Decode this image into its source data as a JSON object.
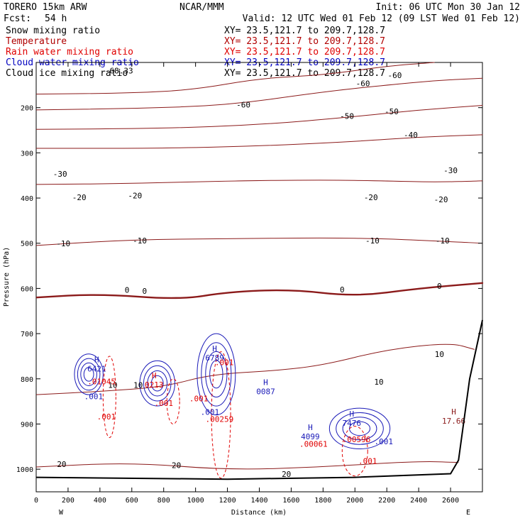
{
  "header": {
    "model": "TORERO  15km ARW",
    "center": "NCAR/MMM",
    "init": "Init: 06 UTC Mon 30 Jan 12",
    "fcst_label": "Fcst:",
    "fcst_value": "54 h",
    "valid": "Valid: 12 UTC Wed 01 Feb 12 (09 LST Wed 01 Feb 12)"
  },
  "fields": [
    {
      "name": "Snow mixing ratio",
      "xy": "XY=  23.5,121.7 to 209.7,128.7",
      "color": "#000000"
    },
    {
      "name": "Temperature",
      "xy": "XY=  23.5,121.7 to 209.7,128.7",
      "color": "#b00000"
    },
    {
      "name": "Rain water mixing ratio",
      "xy": "XY=  23.5,121.7 to 209.7,128.7",
      "color": "#e00000"
    },
    {
      "name": "Cloud water mixing ratio",
      "xy": "XY=  23.5,121.7 to 209.7,128.7",
      "color": "#0000c0"
    },
    {
      "name": "Cloud ice mixing ratio",
      "xy": "XY=  23.5,121.7 to 209.7,128.7",
      "color": "#000000"
    }
  ],
  "colors": {
    "temperature": "#8b1a1a",
    "rain": "#e00000",
    "cloud_water": "#1a1ab8",
    "frame": "#000000"
  },
  "chart_data": {
    "type": "cross-section",
    "xlabel": "Distance (km)",
    "ylabel": "Pressure (hPa)",
    "xlim": [
      0,
      2800
    ],
    "ylim": [
      1050,
      100
    ],
    "x_ticks": [
      0,
      200,
      400,
      600,
      800,
      1000,
      1200,
      1400,
      1600,
      1800,
      2000,
      2200,
      2400,
      2600
    ],
    "y_ticks": [
      200,
      300,
      400,
      500,
      600,
      700,
      800,
      900,
      1000
    ],
    "x_end_labels": {
      "left": "W",
      "right": "E"
    },
    "terrain": [
      [
        0,
        1018
      ],
      [
        1200,
        1022
      ],
      [
        2000,
        1018
      ],
      [
        2600,
        1010
      ],
      [
        2650,
        980
      ],
      [
        2720,
        800
      ],
      [
        2800,
        670
      ]
    ],
    "temperature_contours": [
      {
        "value": -60,
        "points": [
          [
            0,
            170
          ],
          [
            600,
            168
          ],
          [
            1000,
            160
          ],
          [
            1400,
            135
          ],
          [
            1800,
            128
          ],
          [
            2200,
            108
          ],
          [
            2500,
            100
          ]
        ]
      },
      {
        "value": -50,
        "points": [
          [
            0,
            205
          ],
          [
            600,
            202
          ],
          [
            1200,
            195
          ],
          [
            1800,
            165
          ],
          [
            2200,
            150
          ],
          [
            2500,
            140
          ],
          [
            2800,
            135
          ]
        ]
      },
      {
        "value": -40,
        "points": [
          [
            0,
            248
          ],
          [
            800,
            246
          ],
          [
            1400,
            238
          ],
          [
            2000,
            220
          ],
          [
            2400,
            205
          ],
          [
            2800,
            195
          ]
        ]
      },
      {
        "value": -30,
        "points": [
          [
            0,
            290
          ],
          [
            800,
            290
          ],
          [
            1400,
            285
          ],
          [
            2000,
            275
          ],
          [
            2400,
            265
          ],
          [
            2800,
            260
          ]
        ]
      },
      {
        "value": -20,
        "points": [
          [
            0,
            370
          ],
          [
            600,
            368
          ],
          [
            1200,
            362
          ],
          [
            1800,
            360
          ],
          [
            2200,
            362
          ],
          [
            2500,
            365
          ],
          [
            2800,
            362
          ]
        ]
      },
      {
        "value": -10,
        "points": [
          [
            0,
            505
          ],
          [
            600,
            492
          ],
          [
            1200,
            490
          ],
          [
            1800,
            488
          ],
          [
            2200,
            490
          ],
          [
            2500,
            495
          ],
          [
            2800,
            500
          ]
        ]
      },
      {
        "value": 0,
        "points": [
          [
            0,
            620
          ],
          [
            400,
            612
          ],
          [
            900,
            625
          ],
          [
            1200,
            608
          ],
          [
            1600,
            602
          ],
          [
            2000,
            618
          ],
          [
            2400,
            600
          ],
          [
            2800,
            588
          ]
        ]
      },
      {
        "value": 10,
        "points": [
          [
            0,
            835
          ],
          [
            400,
            828
          ],
          [
            800,
            818
          ],
          [
            1100,
            790
          ],
          [
            1500,
            782
          ],
          [
            1800,
            770
          ],
          [
            2200,
            735
          ],
          [
            2600,
            720
          ],
          [
            2750,
            735
          ]
        ]
      },
      {
        "value": 20,
        "points": [
          [
            0,
            995
          ],
          [
            600,
            985
          ],
          [
            1200,
            1002
          ],
          [
            1800,
            995
          ],
          [
            2400,
            982
          ],
          [
            2650,
            985
          ]
        ]
      }
    ],
    "temperature_labels": [
      {
        "text": "-68.33",
        "x": 520,
        "p": 120
      },
      {
        "text": "-60",
        "x": 1300,
        "p": 195
      },
      {
        "text": "-60",
        "x": 2050,
        "p": 148
      },
      {
        "text": "-60",
        "x": 2250,
        "p": 130
      },
      {
        "text": "-50",
        "x": 1950,
        "p": 220
      },
      {
        "text": "-50",
        "x": 2230,
        "p": 210
      },
      {
        "text": "-40",
        "x": 2350,
        "p": 262
      },
      {
        "text": "-30",
        "x": 150,
        "p": 348
      },
      {
        "text": "-30",
        "x": 2600,
        "p": 340
      },
      {
        "text": "-20",
        "x": 270,
        "p": 400
      },
      {
        "text": "-20",
        "x": 620,
        "p": 396
      },
      {
        "text": "-20",
        "x": 2100,
        "p": 400
      },
      {
        "text": "-20",
        "x": 2540,
        "p": 405
      },
      {
        "text": "-10",
        "x": 170,
        "p": 502
      },
      {
        "text": "-10",
        "x": 650,
        "p": 496
      },
      {
        "text": "-10",
        "x": 2110,
        "p": 496
      },
      {
        "text": "-10",
        "x": 2550,
        "p": 496
      },
      {
        "text": "0",
        "x": 570,
        "p": 605
      },
      {
        "text": "0",
        "x": 680,
        "p": 607
      },
      {
        "text": "0",
        "x": 1920,
        "p": 604
      },
      {
        "text": "0",
        "x": 2530,
        "p": 596
      },
      {
        "text": "10",
        "x": 480,
        "p": 815
      },
      {
        "text": "10",
        "x": 640,
        "p": 815
      },
      {
        "text": "10",
        "x": 2150,
        "p": 808
      },
      {
        "text": "10",
        "x": 2530,
        "p": 747
      },
      {
        "text": "20",
        "x": 160,
        "p": 990
      },
      {
        "text": "20",
        "x": 880,
        "p": 993
      },
      {
        "text": "20",
        "x": 1570,
        "p": 1012
      }
    ],
    "highs": [
      {
        "text": "H",
        "value": "17.66",
        "x": 2620,
        "p": 885,
        "field": "temperature"
      },
      {
        "text": "H",
        "value": "6421",
        "x": 380,
        "p": 770,
        "field": "cloud_water"
      },
      {
        "text": "H",
        "value": "6789",
        "x": 1120,
        "p": 745,
        "field": "cloud_water"
      },
      {
        "text": "H",
        "value": "0087",
        "x": 1440,
        "p": 820,
        "field": "cloud_water"
      },
      {
        "text": "H",
        "value": "4099",
        "x": 1720,
        "p": 920,
        "field": "cloud_water"
      },
      {
        "text": "H",
        "value": "7476",
        "x": 1980,
        "p": 890,
        "field": "cloud_water"
      },
      {
        "text": "H",
        "value": "0213",
        "x": 740,
        "p": 805,
        "field": "rain"
      }
    ],
    "rain_labels": [
      {
        "text": ".01045",
        "x": 410,
        "p": 812
      },
      {
        "text": ".001",
        "x": 440,
        "p": 890
      },
      {
        "text": ".001",
        "x": 800,
        "p": 860
      },
      {
        "text": ".001",
        "x": 1020,
        "p": 850
      },
      {
        "text": ".00259",
        "x": 1150,
        "p": 895
      },
      {
        "text": ".001",
        "x": 1180,
        "p": 770
      },
      {
        "text": ".00061",
        "x": 1740,
        "p": 950
      },
      {
        "text": ".00596",
        "x": 2010,
        "p": 940
      },
      {
        "text": ".001",
        "x": 2080,
        "p": 988
      }
    ],
    "cloud_labels": [
      {
        "text": ".001",
        "x": 360,
        "p": 845
      },
      {
        "text": ".001",
        "x": 1090,
        "p": 880
      },
      {
        "text": ".001",
        "x": 2180,
        "p": 945
      }
    ],
    "cloud_water_cells": [
      {
        "x": 330,
        "p": 790,
        "rx": 90,
        "rp": 45
      },
      {
        "x": 760,
        "p": 810,
        "rx": 110,
        "rp": 50
      },
      {
        "x": 1130,
        "p": 790,
        "rx": 120,
        "rp": 90
      },
      {
        "x": 2030,
        "p": 910,
        "rx": 190,
        "rp": 45
      }
    ],
    "rain_cells": [
      {
        "x": 460,
        "p": 840,
        "rx": 40,
        "rp": 90
      },
      {
        "x": 860,
        "p": 850,
        "rx": 40,
        "rp": 50
      },
      {
        "x": 1160,
        "p": 880,
        "rx": 60,
        "rp": 140
      },
      {
        "x": 2000,
        "p": 960,
        "rx": 80,
        "rp": 55
      }
    ]
  }
}
